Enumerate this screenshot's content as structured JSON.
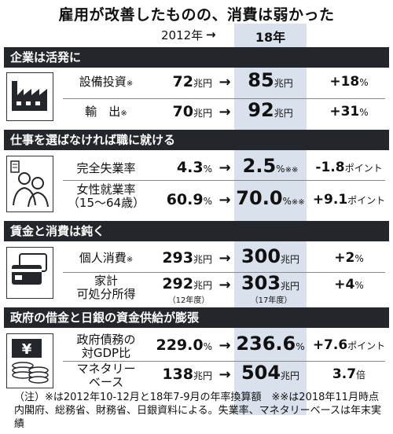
{
  "title": "雇用が改善したものの、消費は弱かった",
  "header": {
    "year_left": "2012年",
    "arrow": "→",
    "year_right": "18年"
  },
  "sections": [
    {
      "heading": "企業は活発に",
      "icon": "factory-icon",
      "rows": [
        {
          "label": "設備投資",
          "mark": "※",
          "v2012": "72",
          "u2012": "兆円",
          "arrow": "→",
          "v18": "85",
          "u18": "兆円",
          "change": "+18",
          "change_unit": "%"
        },
        {
          "label": "輸　出",
          "mark": "※",
          "v2012": "70",
          "u2012": "兆円",
          "arrow": "→",
          "v18": "92",
          "u18": "兆円",
          "change": "+31",
          "change_unit": "%"
        }
      ]
    },
    {
      "heading": "仕事を選ばなければ職に就ける",
      "icon": "job-seekers-icon",
      "rows": [
        {
          "label": "完全失業率",
          "v2012": "4.3",
          "u2012": "%",
          "arrow": "→",
          "v18": "2.5",
          "u18": "%",
          "mark18": "※※",
          "change": "-1.8",
          "change_unit": "ポイント"
        },
        {
          "label": "女性就業率",
          "label2": "（15〜64歳）",
          "v2012": "60.9",
          "u2012": "%",
          "arrow": "→",
          "v18": "70.0",
          "u18": "%",
          "mark18": "※※",
          "change": "+9.1",
          "change_unit": "ポイント"
        }
      ]
    },
    {
      "heading": "賃金と消費は鈍く",
      "icon": "credit-card-icon",
      "rows": [
        {
          "label": "個人消費",
          "mark": "※",
          "v2012": "293",
          "u2012": "兆円",
          "arrow": "→",
          "v18": "300",
          "u18": "兆円",
          "change": "+2",
          "change_unit": "%"
        },
        {
          "label": "家計",
          "label2": "可処分所得",
          "v2012": "292",
          "u2012": "兆円",
          "sub2012": "（12年度）",
          "arrow": "→",
          "v18": "303",
          "u18": "兆円",
          "sub18": "（17年度）",
          "change": "+4",
          "change_unit": "%"
        }
      ]
    },
    {
      "heading": "政府の借金と日銀の資金供給が膨張",
      "icon": "yen-coins-icon",
      "rows": [
        {
          "label": "政府債務の",
          "label2": "対GDP比",
          "v2012": "229.0",
          "u2012": "%",
          "arrow": "→",
          "v18": "236.6",
          "u18": "%",
          "change": "+7.6",
          "change_unit": "ポイント"
        },
        {
          "label": "マネタリー",
          "label2": "ベース",
          "v2012": "138",
          "u2012": "兆円",
          "arrow": "→",
          "v18": "504",
          "u18": "兆円",
          "change": "3.7",
          "change_unit": "倍"
        }
      ]
    }
  ],
  "note": "（注）※は2012年10-12月と18年7-9月の年率換算額　※※は2018年11月時点　内閣府、総務省、財務省、日銀資料による。失業率、マネタリーベースは年末実績"
}
